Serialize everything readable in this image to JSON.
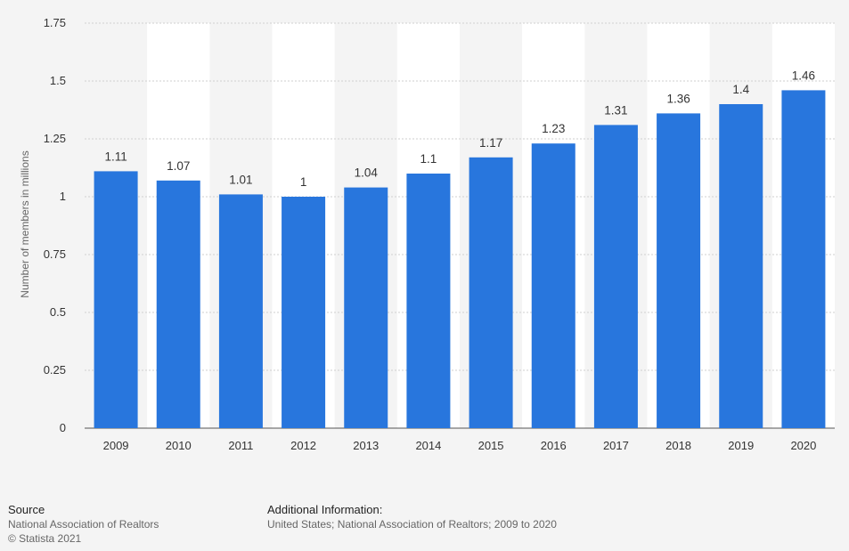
{
  "chart_data": {
    "type": "bar",
    "categories": [
      "2009",
      "2010",
      "2011",
      "2012",
      "2013",
      "2014",
      "2015",
      "2016",
      "2017",
      "2018",
      "2019",
      "2020"
    ],
    "values": [
      1.11,
      1.07,
      1.01,
      1,
      1.04,
      1.1,
      1.17,
      1.23,
      1.31,
      1.36,
      1.4,
      1.46
    ],
    "value_labels": [
      "1.11",
      "1.07",
      "1.01",
      "1",
      "1.04",
      "1.1",
      "1.17",
      "1.23",
      "1.31",
      "1.36",
      "1.4",
      "1.46"
    ],
    "title": "",
    "xlabel": "",
    "ylabel": "Number of members in millions",
    "ylim": [
      0,
      1.75
    ],
    "yticks": [
      "0",
      "0.25",
      "0.5",
      "0.75",
      "1",
      "1.25",
      "1.5",
      "1.75"
    ],
    "grid": true,
    "bar_color": "#2876dd",
    "alt_column_color": "#ffffff"
  },
  "footer": {
    "source_heading": "Source",
    "source_name": "National Association of Realtors",
    "copyright": "© Statista 2021",
    "info_heading": "Additional Information:",
    "info_text": "United States; National Association of Realtors; 2009 to 2020"
  }
}
